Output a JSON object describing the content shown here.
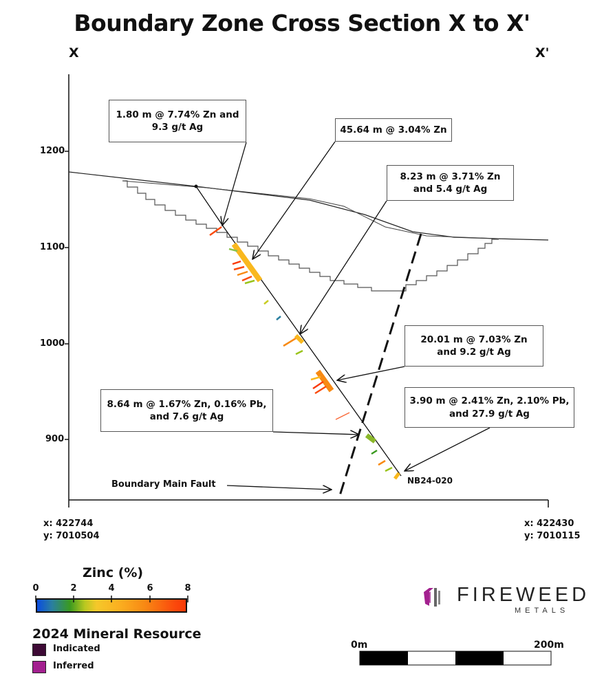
{
  "title": "Boundary Zone Cross Section X to X'",
  "section_start": "X",
  "section_end": "X'",
  "y_axis": {
    "ticks": [
      "1200",
      "1100",
      "1000",
      "900"
    ]
  },
  "annotations": [
    {
      "text": "1.80 m @ 7.74% Zn and 9.3 g/t Ag"
    },
    {
      "text": "45.64 m @ 3.04% Zn"
    },
    {
      "text": "8.23 m @ 3.71% Zn and 5.4 g/t Ag"
    },
    {
      "text": "20.01 m @ 7.03% Zn and 9.2 g/t Ag"
    },
    {
      "text": "8.64 m @ 1.67% Zn, 0.16% Pb, and 7.6 g/t Ag"
    },
    {
      "text": "3.90 m @ 2.41% Zn, 2.10% Pb, and 27.9 g/t Ag"
    }
  ],
  "fault_label": "Boundary Main Fault",
  "drillhole_label": "NB24-020",
  "coords_left": {
    "x": "x: 422744",
    "y": "y: 7010504"
  },
  "coords_right": {
    "x": "x: 422430",
    "y": "y: 7010115"
  },
  "zinc_legend": {
    "title": "Zinc (%)",
    "labels": [
      "0",
      "2",
      "4",
      "6",
      "8"
    ]
  },
  "resource_legend": {
    "title": "2024 Mineral Resource",
    "items": [
      {
        "label": "Indicated",
        "color": "#3d0a35"
      },
      {
        "label": "Inferred",
        "color": "#a3208f"
      }
    ]
  },
  "logo": {
    "name": "FIREWEED",
    "sub": "METALS",
    "color": "#a3208f"
  },
  "scale_bar": {
    "start": "0m",
    "end": "200m"
  }
}
